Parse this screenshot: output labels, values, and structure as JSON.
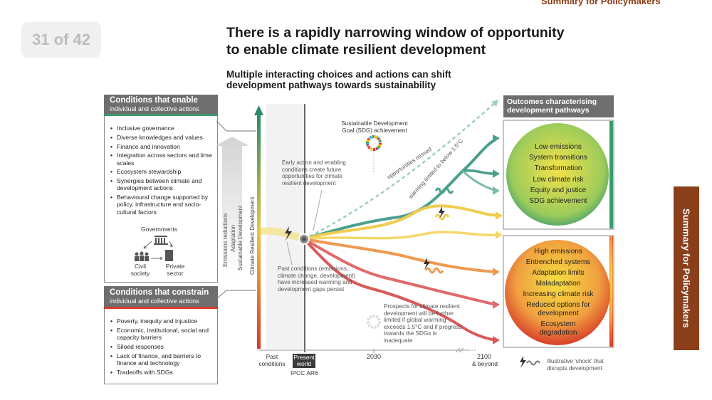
{
  "viewer": {
    "page_indicator": "31 of 42",
    "header_tag": "Summary for Policymakers",
    "side_tab": "Summary for Policymakers"
  },
  "figure": {
    "title_line1": "There is a rapidly narrowing window of opportunity",
    "title_line2": "to enable climate resilient development",
    "subtitle_line1": "Multiple interacting choices and actions can shift",
    "subtitle_line2": "development pathways towards sustainability",
    "enable": {
      "title": "Conditions that enable",
      "subtitle": "individual and collective actions",
      "items": [
        "Inclusive governance",
        "Diverse knowledges and values",
        "Finance and innovation",
        "Integration across sectors and time scales",
        "Ecosystem stewardship",
        "Synergies between climate and development actions",
        "Behavioural change supported by policy, infrastructure and socio-cultural factors"
      ],
      "actors": {
        "governments": "Governments",
        "civil_society": "Civil society",
        "private_sector": "Private sector"
      }
    },
    "constrain": {
      "title": "Conditions that constrain",
      "subtitle": "individual and collective actions",
      "items": [
        "Poverty, inequity and injustice",
        "Economic, institutional, social and capacity barriers",
        "Siloed responses",
        "Lack of finance, and barriers to finance and technology",
        "Tradeoffs with SDGs"
      ]
    },
    "axis_labels": {
      "emissions": "Emissions reductions",
      "adaptation": "Adaptation",
      "sustainable": "Sustainable Development",
      "crd": "Climate Resilient Development"
    },
    "annotations": {
      "sdg": "Sustainable Development Goal (SDG) achievement",
      "early_action": "Early action and enabling conditions create future opportunities for climate resilient development",
      "opportunities_missed": "opportunities missed",
      "warming_limited": "warming limited to below 1.5°C",
      "past_conditions": "Past conditions (emissions, climate change, development) have increased warming and development gaps persist",
      "prospects": "Prospects for climate resilient development will be further limited if global warming exceeds 1.5°C and if progress towards the SDGs is inadequate"
    },
    "timeline": {
      "past_conditions": "Past conditions",
      "present_world": "Present world",
      "ipcc": "IPCC AR6",
      "y2030": "2030",
      "y2100": "2100",
      "beyond": "& beyond"
    },
    "outcomes": {
      "title": "Outcomes characterising development pathways",
      "positive": [
        "Low emissions",
        "System transitions",
        "Transformation",
        "Low climate risk",
        "Equity and justice",
        "SDG achievement"
      ],
      "negative": [
        "High emissions",
        "Entrenched systems",
        "Adaptation limits",
        "Maladaptation",
        "Increasing climate risk",
        "Reduced options for development",
        "Ecosystem degradation"
      ]
    },
    "legend_shock": "Illustrative 'shock' that disrupts development"
  }
}
